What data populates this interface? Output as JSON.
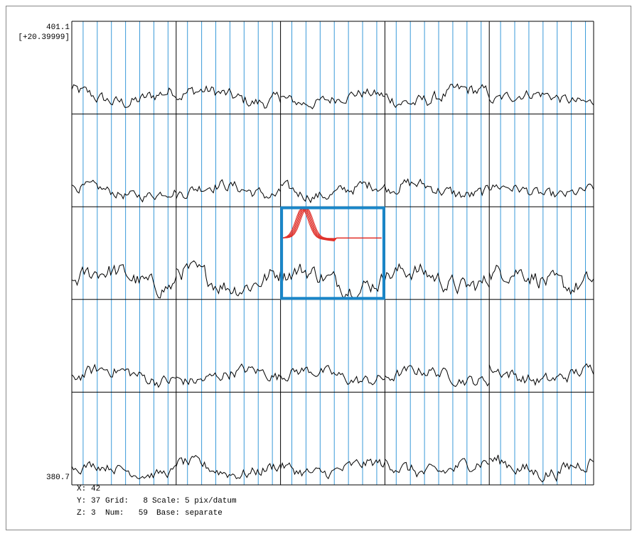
{
  "axis": {
    "top": "401.1",
    "offset": "[+20.39999]",
    "bottom": "380.7"
  },
  "status": {
    "x_label": "X:",
    "x": "42",
    "y_label": "Y:",
    "y": "37",
    "z_label": "Z:",
    "z": "3",
    "grid_label": "Grid:",
    "grid": "8",
    "num_label": "Num:",
    "num": "59",
    "scale_label": "Scale:",
    "scale": "5 pix/datum",
    "base_label": "Base:",
    "base": "separate"
  }
}
